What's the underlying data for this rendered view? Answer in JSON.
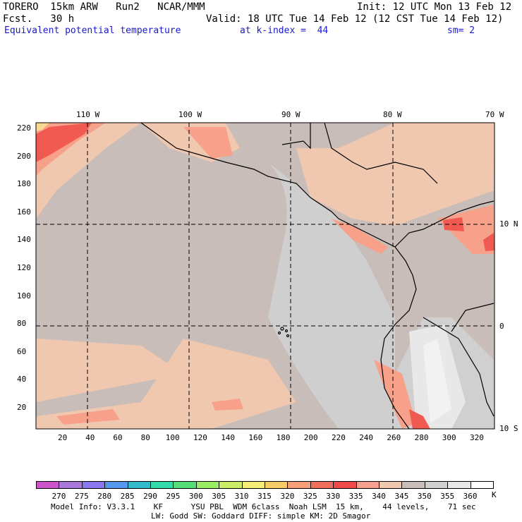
{
  "header": {
    "line1_left": "TORERO  15km ARW   Run2   NCAR/MMM",
    "line1_right": "Init: 12 UTC Mon 13 Feb 12",
    "line2_left": "Fcst.   30 h",
    "line2_right": "Valid: 18 UTC Tue 14 Feb 12 (12 CST Tue 14 Feb 12)",
    "field_name": "Equivalent potential temperature",
    "level": "at k-index =  44",
    "smoothing": "sm= 2"
  },
  "map": {
    "top_lon_labels": [
      "110 W",
      "100 W",
      "90 W",
      "80 W",
      "70 W"
    ],
    "right_lat_labels": [
      "10 N",
      "0",
      "10 S"
    ],
    "y_ticks": [
      "220",
      "200",
      "180",
      "160",
      "140",
      "120",
      "100",
      "80",
      "60",
      "40",
      "20"
    ],
    "x_ticks": [
      "20",
      "40",
      "60",
      "80",
      "100",
      "120",
      "140",
      "160",
      "180",
      "200",
      "220",
      "240",
      "260",
      "280",
      "300",
      "320"
    ],
    "colors": {
      "background_fill": "#c8bdb8",
      "cooler_gray": "#cfcfcf",
      "warm_345": "#f0c8b0",
      "warm_335": "#f7a08a",
      "hot_330": "#f05a50",
      "cool_350": "#dcdcdc",
      "coldest_360": "#f2f2f2",
      "yellow_320": "#fad890"
    }
  },
  "legend": {
    "labels": [
      "270",
      "275",
      "280",
      "285",
      "290",
      "295",
      "300",
      "305",
      "310",
      "315",
      "320",
      "325",
      "330",
      "335",
      "340",
      "345",
      "350",
      "355",
      "360"
    ],
    "unit": "K",
    "colors": [
      "#cc55cc",
      "#aa77dd",
      "#8877ee",
      "#5599ee",
      "#33bbcc",
      "#33ddaa",
      "#55dd77",
      "#99ee66",
      "#ccee66",
      "#f5ee77",
      "#f8cc66",
      "#f7a07a",
      "#f06f5a",
      "#f04a48",
      "#f8a090",
      "#f0c8b0",
      "#c8bdb8",
      "#d0d0d0",
      "#e8e8e8",
      "#ffffff"
    ]
  },
  "footer": {
    "line1": "Model Info: V3.3.1    KF      YSU PBL  WDM 6class  Noah LSM  15 km,    44 levels,    71 sec",
    "line2": "LW: Godd SW: Goddard DIFF: simple KM: 2D Smagor"
  }
}
